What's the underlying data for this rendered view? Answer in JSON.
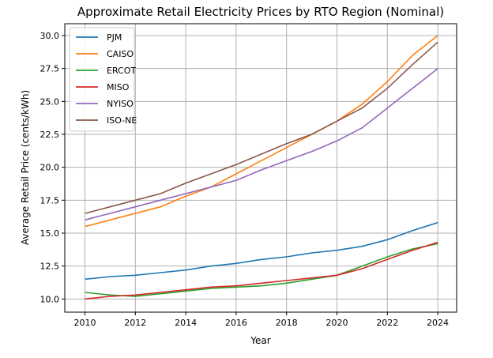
{
  "chart_data": {
    "type": "line",
    "title": "Approximate Retail Electricity Prices by RTO Region (Nominal)",
    "xlabel": "Year",
    "ylabel": "Average Retail Price (cents/kWh)",
    "xlim": [
      2009.2,
      2024.75
    ],
    "ylim": [
      9.0,
      30.9
    ],
    "xticks": [
      2010,
      2012,
      2014,
      2016,
      2018,
      2020,
      2022,
      2024
    ],
    "yticks": [
      "10.0",
      "12.5",
      "15.0",
      "17.5",
      "20.0",
      "22.5",
      "25.0",
      "27.5",
      "30.0"
    ],
    "grid": true,
    "legend_position": "upper-left",
    "x": [
      2010,
      2011,
      2012,
      2013,
      2014,
      2015,
      2016,
      2017,
      2018,
      2019,
      2020,
      2021,
      2022,
      2023,
      2024
    ],
    "series": [
      {
        "name": "PJM",
        "color": "#1f77b4",
        "values": [
          11.5,
          11.7,
          11.8,
          12.0,
          12.2,
          12.5,
          12.7,
          13.0,
          13.2,
          13.5,
          13.7,
          14.0,
          14.5,
          15.2,
          15.8
        ]
      },
      {
        "name": "CAISO",
        "color": "#ff7f0e",
        "values": [
          15.5,
          16.0,
          16.5,
          17.0,
          17.8,
          18.5,
          19.5,
          20.5,
          21.5,
          22.5,
          23.5,
          24.8,
          26.5,
          28.5,
          30.0
        ]
      },
      {
        "name": "ERCOT",
        "color": "#2ca02c",
        "values": [
          10.5,
          10.3,
          10.2,
          10.4,
          10.6,
          10.8,
          10.9,
          11.0,
          11.2,
          11.5,
          11.8,
          12.5,
          13.2,
          13.8,
          14.2
        ]
      },
      {
        "name": "MISO",
        "color": "#d62728",
        "values": [
          10.0,
          10.2,
          10.3,
          10.5,
          10.7,
          10.9,
          11.0,
          11.2,
          11.4,
          11.6,
          11.8,
          12.3,
          13.0,
          13.7,
          14.3
        ]
      },
      {
        "name": "NYISO",
        "color": "#9467bd",
        "values": [
          16.0,
          16.5,
          17.0,
          17.5,
          18.0,
          18.5,
          19.0,
          19.8,
          20.5,
          21.2,
          22.0,
          23.0,
          24.5,
          26.0,
          27.5
        ]
      },
      {
        "name": "ISO-NE",
        "color": "#8c564b",
        "values": [
          16.5,
          17.0,
          17.5,
          18.0,
          18.8,
          19.5,
          20.2,
          21.0,
          21.8,
          22.5,
          23.5,
          24.5,
          26.0,
          27.8,
          29.5
        ]
      }
    ]
  }
}
